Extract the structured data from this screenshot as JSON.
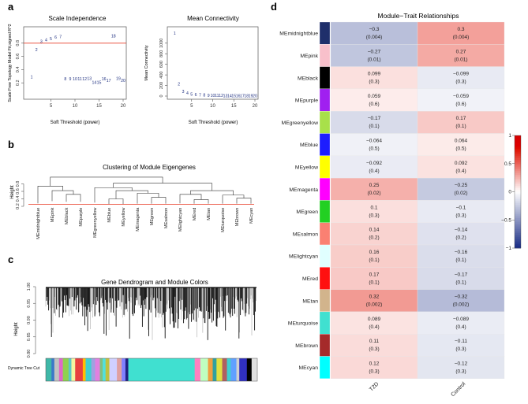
{
  "panel_letters": {
    "a": "a",
    "b": "b",
    "c": "c",
    "d": "d"
  },
  "chart_data": [
    {
      "panel": "a-left",
      "type": "scatter",
      "title": "Scale Independence",
      "xlabel": "Soft Threshold (power)",
      "ylabel": "Scale Free Topology Model Fit,signed R^2",
      "xlim": [
        0,
        20
      ],
      "ylim": [
        0,
        1.0
      ],
      "xticks": [
        5,
        10,
        15,
        20
      ],
      "yticks": [
        0.2,
        0.4,
        0.6,
        0.8
      ],
      "threshold_line": 0.8,
      "threshold_color": "#e8412c",
      "points": [
        {
          "x": 1,
          "y": 0.29,
          "label": "1"
        },
        {
          "x": 2,
          "y": 0.7,
          "label": "2"
        },
        {
          "x": 3,
          "y": 0.83,
          "label": "3"
        },
        {
          "x": 4,
          "y": 0.85,
          "label": "4"
        },
        {
          "x": 5,
          "y": 0.87,
          "label": "5"
        },
        {
          "x": 6,
          "y": 0.89,
          "label": "6"
        },
        {
          "x": 7,
          "y": 0.9,
          "label": "7"
        },
        {
          "x": 8,
          "y": 0.26,
          "label": "8"
        },
        {
          "x": 9,
          "y": 0.26,
          "label": "9"
        },
        {
          "x": 10,
          "y": 0.26,
          "label": "10"
        },
        {
          "x": 11,
          "y": 0.26,
          "label": "11"
        },
        {
          "x": 12,
          "y": 0.26,
          "label": "12"
        },
        {
          "x": 13,
          "y": 0.27,
          "label": "13"
        },
        {
          "x": 14,
          "y": 0.21,
          "label": "14"
        },
        {
          "x": 15,
          "y": 0.21,
          "label": "15"
        },
        {
          "x": 16,
          "y": 0.26,
          "label": "16"
        },
        {
          "x": 17,
          "y": 0.24,
          "label": "17"
        },
        {
          "x": 18,
          "y": 0.91,
          "label": "18"
        },
        {
          "x": 19,
          "y": 0.27,
          "label": "19"
        },
        {
          "x": 20,
          "y": 0.24,
          "label": "20"
        }
      ]
    },
    {
      "panel": "a-right",
      "type": "scatter",
      "title": "Mean Connectivity",
      "xlabel": "Soft Threshold (power)",
      "ylabel": "Mean Connectivity",
      "xlim": [
        0,
        20
      ],
      "ylim": [
        0,
        1250
      ],
      "xticks": [
        5,
        10,
        15,
        20
      ],
      "yticks": [
        0,
        200,
        400,
        600,
        800,
        1000
      ],
      "points": [
        {
          "x": 1,
          "y": 1190,
          "label": "1"
        },
        {
          "x": 2,
          "y": 230,
          "label": "2"
        },
        {
          "x": 3,
          "y": 90,
          "label": "3"
        },
        {
          "x": 4,
          "y": 60,
          "label": "4"
        },
        {
          "x": 5,
          "y": 40,
          "label": "5"
        },
        {
          "x": 6,
          "y": 30,
          "label": "6"
        },
        {
          "x": 7,
          "y": 25,
          "label": "7"
        },
        {
          "x": 8,
          "y": 20,
          "label": "8"
        },
        {
          "x": 9,
          "y": 18,
          "label": "9"
        },
        {
          "x": 10,
          "y": 15,
          "label": "10"
        },
        {
          "x": 11,
          "y": 13,
          "label": "11"
        },
        {
          "x": 12,
          "y": 12,
          "label": "12"
        },
        {
          "x": 13,
          "y": 11,
          "label": "13"
        },
        {
          "x": 14,
          "y": 10,
          "label": "14"
        },
        {
          "x": 15,
          "y": 9,
          "label": "15"
        },
        {
          "x": 16,
          "y": 8,
          "label": "16"
        },
        {
          "x": 17,
          "y": 8,
          "label": "17"
        },
        {
          "x": 18,
          "y": 7,
          "label": "18"
        },
        {
          "x": 19,
          "y": 7,
          "label": "19"
        },
        {
          "x": 20,
          "y": 6,
          "label": "20"
        }
      ]
    },
    {
      "panel": "b",
      "type": "dendrogram",
      "title": "Clustering of Module Eigengenes",
      "ylabel": "Height",
      "yticks": [
        0.2,
        0.4,
        0.6,
        0.8
      ],
      "leaves": [
        "MEmidnightblue",
        "MEpink",
        "MEblack",
        "MEpurple",
        "MEgreenyellow",
        "MEblue",
        "MEyellow",
        "MEmagenta",
        "MEgreen",
        "MEsalmon",
        "MElightcyan",
        "MEred",
        "MEtan",
        "MEturquoise",
        "MEbrown",
        "MEcyan"
      ],
      "cut_height": 0.25,
      "cut_color": "#e8412c"
    },
    {
      "panel": "c",
      "type": "dendrogram",
      "title": "Gene Dendrogram and Module Colors",
      "ylabel": "Height",
      "ylim": [
        0.8,
        1.0
      ],
      "yticks": [
        0.8,
        0.85,
        0.9,
        0.95,
        1.0
      ],
      "color_bar_label": "Dynamic Tree Cut",
      "color_bar": [
        "#3fb8a8",
        "#3b78c8",
        "#c2c2c2",
        "#e066c8",
        "#8fd14f",
        "#5cc8c8",
        "#f5f5a0",
        "#e84040",
        "#ffbf00",
        "#40d0d0",
        "#a0a0e0",
        "#e080e0",
        "#80c080",
        "#50e0e0",
        "#c0c040",
        "#d0d0ff",
        "#e0a0a0",
        "#8080ff",
        "#202080",
        "#40e0d0",
        "#ff80c0",
        "#c0ffc0",
        "#f0a040",
        "#30a0a0",
        "#e0e040",
        "#b06060",
        "#40d0d0",
        "#60a0ff",
        "#d0d0d0",
        "#3030c0",
        "#000000",
        "#e0e0e0"
      ]
    },
    {
      "panel": "d",
      "type": "heatmap",
      "title": "Module−Trait Relationships",
      "columns": [
        "T2D",
        "Control"
      ],
      "rows": [
        {
          "name": "MEmidnightblue",
          "swatch": "#1f2f6b",
          "values": [
            -0.3,
            0.3
          ],
          "labels": [
            "−0.3",
            "0.3"
          ],
          "pvalues": [
            "(0.004)",
            "(0.004)"
          ]
        },
        {
          "name": "MEpink",
          "swatch": "#f8c0cb",
          "values": [
            -0.27,
            0.27
          ],
          "labels": [
            "−0.27",
            "0.27"
          ],
          "pvalues": [
            "(0.01)",
            "(0.01)"
          ]
        },
        {
          "name": "MEblack",
          "swatch": "#000000",
          "values": [
            0.099,
            -0.099
          ],
          "labels": [
            "0.099",
            "−0.099"
          ],
          "pvalues": [
            "(0.3)",
            "(0.3)"
          ]
        },
        {
          "name": "MEpurple",
          "swatch": "#a020f0",
          "values": [
            0.059,
            -0.059
          ],
          "labels": [
            "0.059",
            "−0.059"
          ],
          "pvalues": [
            "(0.6)",
            "(0.6)"
          ]
        },
        {
          "name": "MEgreenyellow",
          "swatch": "#a8e04a",
          "values": [
            -0.17,
            0.17
          ],
          "labels": [
            "−0.17",
            "0.17"
          ],
          "pvalues": [
            "(0.1)",
            "(0.1)"
          ]
        },
        {
          "name": "MEblue",
          "swatch": "#1d1dff",
          "values": [
            -0.064,
            0.064
          ],
          "labels": [
            "−0.064",
            "0.064"
          ],
          "pvalues": [
            "(0.5)",
            "(0.5)"
          ]
        },
        {
          "name": "MEyellow",
          "swatch": "#ffff00",
          "values": [
            -0.092,
            0.092
          ],
          "labels": [
            "−0.092",
            "0.092"
          ],
          "pvalues": [
            "(0.4)",
            "(0.4)"
          ]
        },
        {
          "name": "MEmagenta",
          "swatch": "#ff00ff",
          "values": [
            0.25,
            -0.25
          ],
          "labels": [
            "0.25",
            "−0.25"
          ],
          "pvalues": [
            "(0.02)",
            "(0.02)"
          ]
        },
        {
          "name": "MEgreen",
          "swatch": "#22d022",
          "values": [
            0.1,
            -0.1
          ],
          "labels": [
            "0.1",
            "−0.1"
          ],
          "pvalues": [
            "(0.3)",
            "(0.3)"
          ]
        },
        {
          "name": "MEsalmon",
          "swatch": "#fa8072",
          "values": [
            0.14,
            -0.14
          ],
          "labels": [
            "0.14",
            "−0.14"
          ],
          "pvalues": [
            "(0.2)",
            "(0.2)"
          ]
        },
        {
          "name": "MElightcyan",
          "swatch": "#e0ffff",
          "values": [
            0.16,
            -0.16
          ],
          "labels": [
            "0.16",
            "−0.16"
          ],
          "pvalues": [
            "(0.1)",
            "(0.1)"
          ]
        },
        {
          "name": "MEred",
          "swatch": "#ff1010",
          "values": [
            0.17,
            -0.17
          ],
          "labels": [
            "0.17",
            "−0.17"
          ],
          "pvalues": [
            "(0.1)",
            "(0.1)"
          ]
        },
        {
          "name": "MEtan",
          "swatch": "#d2b48c",
          "values": [
            0.32,
            -0.32
          ],
          "labels": [
            "0.32",
            "−0.32"
          ],
          "pvalues": [
            "(0.002)",
            "(0.002)"
          ]
        },
        {
          "name": "MEturquoise",
          "swatch": "#40e0d0",
          "values": [
            0.089,
            -0.089
          ],
          "labels": [
            "0.089",
            "−0.089"
          ],
          "pvalues": [
            "(0.4)",
            "(0.4)"
          ]
        },
        {
          "name": "MEbrown",
          "swatch": "#a52a2a",
          "values": [
            0.11,
            -0.11
          ],
          "labels": [
            "0.11",
            "−0.11"
          ],
          "pvalues": [
            "(0.3)",
            "(0.3)"
          ]
        },
        {
          "name": "MEcyan",
          "swatch": "#00ffff",
          "values": [
            0.12,
            -0.12
          ],
          "labels": [
            "0.12",
            "−0.12"
          ],
          "pvalues": [
            "(0.3)",
            "(0.3)"
          ]
        }
      ],
      "colorbar": {
        "min": -1,
        "max": 1,
        "ticks": [
          1,
          0.5,
          0,
          -0.5,
          -1
        ],
        "tick_labels": [
          "1",
          "0.5",
          "0",
          "−0.5",
          "−1"
        ],
        "low_color": "#2c3e90",
        "mid_color": "#ffffff",
        "high_color": "#e53a2d"
      }
    }
  ]
}
